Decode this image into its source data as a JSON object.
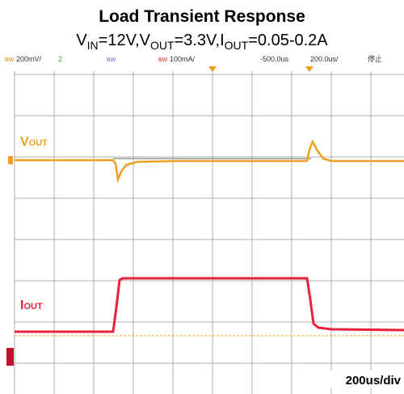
{
  "title": "Load Transient Response",
  "subtitle": [
    "V",
    "IN",
    "=12V,V",
    "OUT",
    "=3.3V,I",
    "OUT",
    "=0.05-0.2A"
  ],
  "status_bar": [
    "BW",
    "200mV/",
    "2",
    "BW",
    "BW",
    "100mA/",
    "-500.0us",
    "200.0us/",
    "停止"
  ],
  "traces": {
    "vout": [
      "V",
      "OUT"
    ],
    "iout": [
      "I",
      "OUT"
    ]
  },
  "timebase": "200us/div"
}
